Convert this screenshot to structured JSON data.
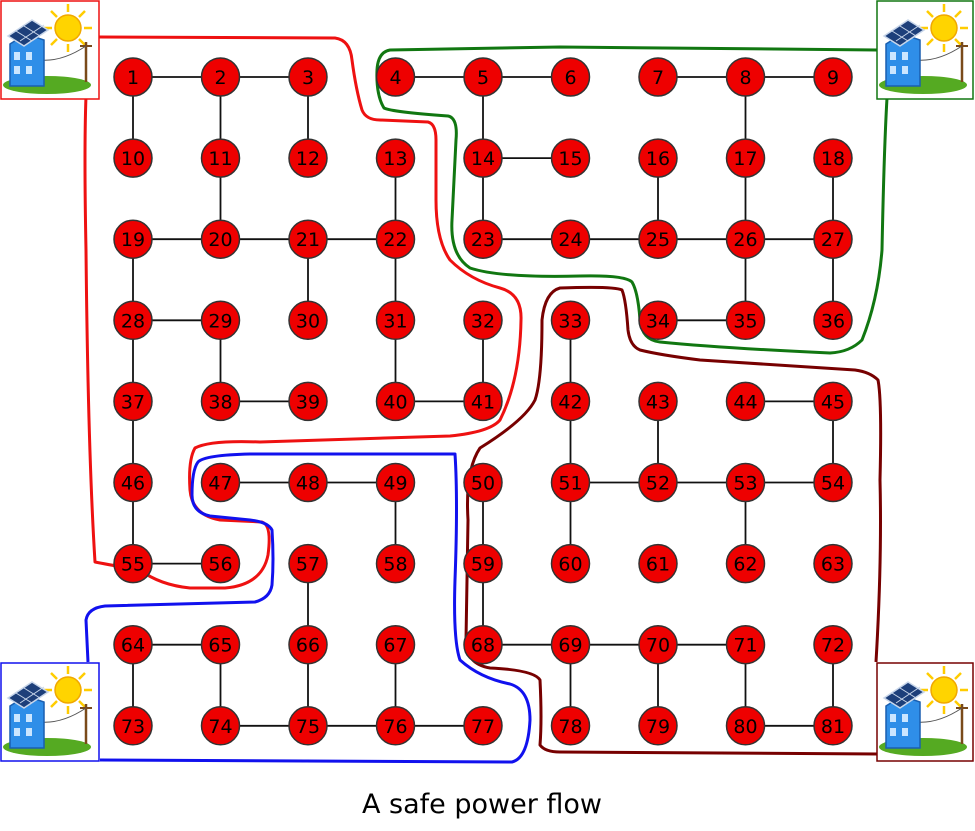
{
  "caption": "A safe power flow",
  "colors": {
    "node_fill": "#ee0000",
    "node_stroke": "#333333",
    "edge": "#111111",
    "region_red": "#ee1111",
    "region_green": "#117711",
    "region_blue": "#1111ee",
    "region_darkred": "#770000"
  },
  "grid": {
    "rows": 9,
    "cols": 9
  },
  "nodes": [
    "1",
    "2",
    "3",
    "4",
    "5",
    "6",
    "7",
    "8",
    "9",
    "10",
    "11",
    "12",
    "13",
    "14",
    "15",
    "16",
    "17",
    "18",
    "19",
    "20",
    "21",
    "22",
    "23",
    "24",
    "25",
    "26",
    "27",
    "28",
    "29",
    "30",
    "31",
    "32",
    "33",
    "34",
    "35",
    "36",
    "37",
    "38",
    "39",
    "40",
    "41",
    "42",
    "43",
    "44",
    "45",
    "46",
    "47",
    "48",
    "49",
    "50",
    "51",
    "52",
    "53",
    "54",
    "55",
    "56",
    "57",
    "58",
    "59",
    "60",
    "61",
    "62",
    "63",
    "64",
    "65",
    "66",
    "67",
    "68",
    "69",
    "70",
    "71",
    "72",
    "73",
    "74",
    "75",
    "76",
    "77",
    "78",
    "79",
    "80",
    "81"
  ],
  "edges": [
    [
      1,
      2
    ],
    [
      2,
      3
    ],
    [
      1,
      10
    ],
    [
      2,
      11
    ],
    [
      3,
      12
    ],
    [
      11,
      20
    ],
    [
      19,
      20
    ],
    [
      20,
      21
    ],
    [
      21,
      22
    ],
    [
      13,
      22
    ],
    [
      19,
      28
    ],
    [
      21,
      30
    ],
    [
      22,
      31
    ],
    [
      28,
      29
    ],
    [
      29,
      38
    ],
    [
      28,
      37
    ],
    [
      38,
      39
    ],
    [
      31,
      40
    ],
    [
      40,
      41
    ],
    [
      32,
      41
    ],
    [
      37,
      46
    ],
    [
      46,
      55
    ],
    [
      55,
      56
    ],
    [
      47,
      48
    ],
    [
      48,
      49
    ],
    [
      49,
      58
    ],
    [
      57,
      66
    ],
    [
      66,
      75
    ],
    [
      64,
      65
    ],
    [
      65,
      74
    ],
    [
      64,
      73
    ],
    [
      74,
      75
    ],
    [
      75,
      76
    ],
    [
      76,
      77
    ],
    [
      67,
      76
    ],
    [
      4,
      5
    ],
    [
      5,
      6
    ],
    [
      5,
      14
    ],
    [
      14,
      15
    ],
    [
      14,
      23
    ],
    [
      23,
      24
    ],
    [
      24,
      25
    ],
    [
      25,
      26
    ],
    [
      26,
      27
    ],
    [
      16,
      25
    ],
    [
      8,
      9
    ],
    [
      7,
      8
    ],
    [
      8,
      17
    ],
    [
      17,
      26
    ],
    [
      18,
      27
    ],
    [
      26,
      35
    ],
    [
      34,
      35
    ],
    [
      27,
      36
    ],
    [
      33,
      42
    ],
    [
      42,
      51
    ],
    [
      51,
      52
    ],
    [
      52,
      53
    ],
    [
      53,
      54
    ],
    [
      43,
      52
    ],
    [
      44,
      45
    ],
    [
      45,
      54
    ],
    [
      51,
      60
    ],
    [
      53,
      62
    ],
    [
      50,
      59
    ],
    [
      59,
      68
    ],
    [
      68,
      69
    ],
    [
      69,
      70
    ],
    [
      70,
      71
    ],
    [
      69,
      78
    ],
    [
      70,
      79
    ],
    [
      71,
      80
    ],
    [
      80,
      81
    ],
    [
      72,
      81
    ]
  ],
  "sources": [
    {
      "name": "top-left",
      "icon": "solar-house-icon",
      "frame": "#ee1111"
    },
    {
      "name": "top-right",
      "icon": "solar-house-icon",
      "frame": "#117711"
    },
    {
      "name": "bottom-left",
      "icon": "solar-house-icon",
      "frame": "#1111ee"
    },
    {
      "name": "bottom-right",
      "icon": "solar-house-icon",
      "frame": "#770000"
    }
  ]
}
